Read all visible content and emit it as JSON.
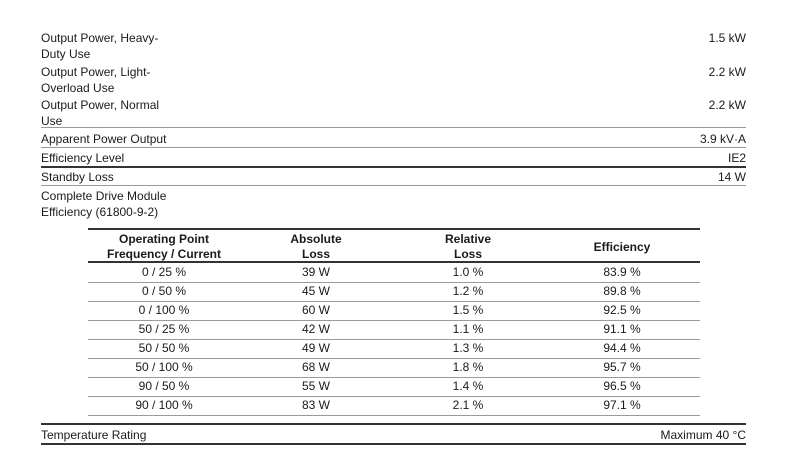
{
  "specs": [
    {
      "label": "Output Power, Heavy-\nDuty Use",
      "value": "1.5 kW"
    },
    {
      "label": "Output Power, Light-\nOverload Use",
      "value": "2.2 kW"
    },
    {
      "label": "Output Power, Normal\nUse",
      "value": "2.2 kW"
    },
    {
      "label": "Apparent Power Output",
      "value": "3.9 kV·A"
    },
    {
      "label": "Efficiency Level",
      "value": "IE2"
    },
    {
      "label": "Standby Loss",
      "value": "14 W"
    },
    {
      "label": "Complete Drive Module\nEfficiency (61800-9-2)",
      "value": ""
    }
  ],
  "table": {
    "headers": [
      "Operating Point\nFrequency / Current",
      "Absolute\nLoss",
      "Relative\nLoss",
      "Efficiency"
    ],
    "rows": [
      [
        "0 / 25 %",
        "39 W",
        "1.0 %",
        "83.9 %"
      ],
      [
        "0 / 50 %",
        "45 W",
        "1.2 %",
        "89.8 %"
      ],
      [
        "0 / 100 %",
        "60 W",
        "1.5 %",
        "92.5 %"
      ],
      [
        "50 / 25 %",
        "42 W",
        "1.1 %",
        "91.1 %"
      ],
      [
        "50 / 50 %",
        "49 W",
        "1.3 %",
        "94.4 %"
      ],
      [
        "50 / 100 %",
        "68 W",
        "1.8 %",
        "95.7 %"
      ],
      [
        "90 / 50 %",
        "55 W",
        "1.4 %",
        "96.5 %"
      ],
      [
        "90 / 100 %",
        "83 W",
        "2.1 %",
        "97.1 %"
      ]
    ]
  },
  "temperature": {
    "label": "Temperature Rating",
    "value": "Maximum 40 °C"
  }
}
